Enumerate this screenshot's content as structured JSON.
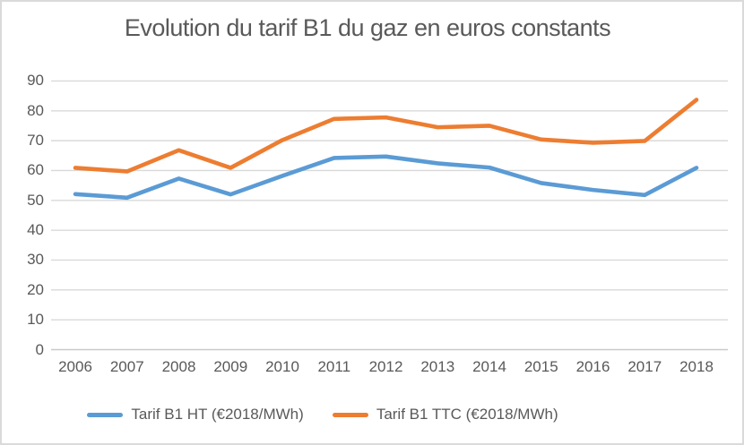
{
  "chart_data": {
    "type": "line",
    "title": "Evolution du tarif B1 du gaz en euros constants",
    "categories": [
      "2006",
      "2007",
      "2008",
      "2009",
      "2010",
      "2011",
      "2012",
      "2013",
      "2014",
      "2015",
      "2016",
      "2017",
      "2018"
    ],
    "series": [
      {
        "name": "Tarif B1 HT (€2018/MWh)",
        "color": "#5B9BD5",
        "values": [
          52.1,
          50.9,
          57.3,
          52.0,
          58.2,
          64.2,
          64.7,
          62.4,
          61.0,
          55.8,
          53.5,
          51.8,
          60.9
        ]
      },
      {
        "name": "Tarif B1 TTC (€2018/MWh)",
        "color": "#ED7D31",
        "values": [
          60.9,
          59.7,
          66.8,
          60.9,
          70.2,
          77.3,
          77.8,
          74.5,
          75.0,
          70.4,
          69.3,
          69.9,
          83.7
        ]
      }
    ],
    "xlabel": "",
    "ylabel": "",
    "ylim": [
      0,
      90
    ],
    "yticks": [
      90,
      80,
      70,
      60,
      50,
      40,
      30,
      20,
      10,
      0
    ],
    "grid": "horizontal",
    "legend_position": "bottom"
  },
  "colors": {
    "gridline": "#D9D9D9",
    "axis_line": "#C9C9C9",
    "text": "#595959",
    "frame_border": "#DADADA",
    "background": "#FFFFFF"
  }
}
